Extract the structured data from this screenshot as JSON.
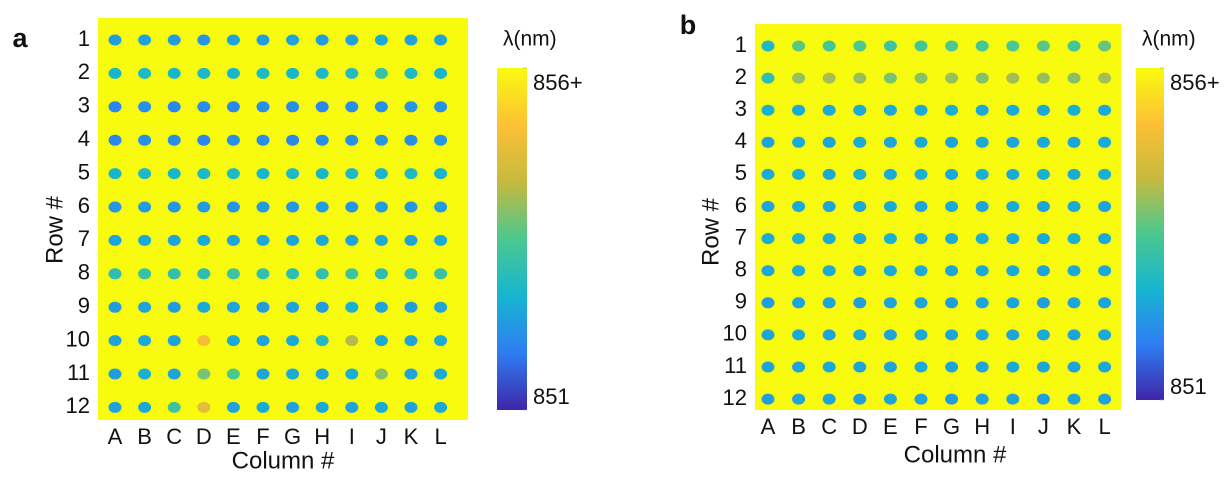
{
  "chart_data": [
    {
      "type": "heatmap",
      "panel": "a",
      "x_label": "Column #",
      "y_label": "Row #",
      "categories": [
        "A",
        "B",
        "C",
        "D",
        "E",
        "F",
        "G",
        "H",
        "I",
        "J",
        "K",
        "L"
      ],
      "rows": [
        1,
        2,
        3,
        4,
        5,
        6,
        7,
        8,
        9,
        10,
        11,
        12
      ],
      "background_value": 856,
      "values": [
        [
          852.3,
          852.4,
          852.3,
          852.2,
          852.4,
          852.3,
          852.4,
          852.3,
          852.4,
          852.5,
          852.4,
          852.4
        ],
        [
          852.7,
          852.8,
          852.7,
          852.8,
          852.7,
          852.8,
          852.7,
          852.8,
          852.9,
          853.2,
          852.8,
          852.7
        ],
        [
          852.0,
          852.1,
          852.0,
          852.1,
          852.0,
          852.1,
          852.1,
          852.0,
          852.1,
          852.1,
          852.2,
          852.1
        ],
        [
          852.0,
          852.1,
          852.1,
          852.0,
          852.1,
          852.1,
          852.0,
          852.1,
          852.1,
          852.2,
          852.1,
          852.2
        ],
        [
          852.7,
          852.8,
          852.7,
          852.8,
          852.8,
          852.7,
          852.8,
          852.7,
          852.8,
          852.7,
          852.8,
          852.7
        ],
        [
          852.2,
          852.3,
          852.2,
          852.3,
          852.2,
          852.3,
          852.2,
          852.3,
          852.2,
          852.3,
          852.2,
          852.3
        ],
        [
          852.4,
          852.5,
          852.4,
          852.5,
          852.4,
          852.5,
          852.4,
          852.5,
          852.4,
          852.5,
          852.4,
          852.5
        ],
        [
          853.0,
          853.2,
          853.1,
          853.0,
          853.3,
          853.1,
          853.0,
          853.1,
          853.3,
          853.0,
          853.1,
          853.2
        ],
        [
          852.3,
          852.4,
          852.3,
          852.5,
          852.4,
          852.3,
          852.4,
          852.3,
          852.6,
          852.4,
          852.3,
          852.4
        ],
        [
          852.4,
          852.5,
          852.4,
          855.0,
          852.5,
          852.4,
          852.5,
          852.9,
          854.2,
          852.5,
          852.4,
          852.5
        ],
        [
          852.3,
          852.6,
          852.4,
          853.8,
          853.5,
          852.4,
          852.5,
          852.4,
          852.6,
          853.9,
          852.4,
          852.5
        ],
        [
          852.4,
          852.5,
          853.3,
          854.8,
          852.4,
          852.5,
          852.4,
          852.5,
          852.4,
          852.5,
          852.4,
          852.5
        ]
      ],
      "colorbar_label": "λ(nm)",
      "clim": [
        851,
        856
      ],
      "colorbar_ticks": [
        {
          "value": 856,
          "label": "856+"
        },
        851
      ],
      "colormap": [
        "#3e26a8",
        "#2f7df3",
        "#16b5d0",
        "#4bc88f",
        "#c6ba3e",
        "#fdc035",
        "#f9fb0e"
      ]
    },
    {
      "type": "heatmap",
      "panel": "b",
      "x_label": "Column #",
      "y_label": "Row #",
      "categories": [
        "A",
        "B",
        "C",
        "D",
        "E",
        "F",
        "G",
        "H",
        "I",
        "J",
        "K",
        "L"
      ],
      "rows": [
        1,
        2,
        3,
        4,
        5,
        6,
        7,
        8,
        9,
        10,
        11,
        12
      ],
      "background_value": 856,
      "values": [
        [
          852.8,
          853.6,
          853.4,
          853.5,
          853.3,
          853.4,
          853.5,
          853.4,
          853.5,
          853.6,
          853.4,
          853.7
        ],
        [
          853.0,
          854.0,
          854.1,
          854.0,
          853.8,
          853.9,
          854.0,
          853.9,
          854.1,
          854.0,
          853.9,
          854.1
        ],
        [
          852.6,
          852.5,
          852.5,
          852.5,
          852.5,
          852.5,
          852.6,
          852.5,
          852.5,
          852.5,
          852.6,
          852.5
        ],
        [
          852.4,
          852.5,
          852.4,
          852.5,
          852.4,
          852.5,
          852.4,
          852.5,
          852.4,
          852.5,
          852.4,
          852.5
        ],
        [
          852.5,
          852.6,
          852.5,
          852.6,
          852.5,
          852.6,
          852.5,
          852.6,
          852.5,
          852.6,
          852.5,
          852.6
        ],
        [
          852.4,
          852.5,
          852.4,
          852.5,
          852.5,
          852.4,
          852.5,
          852.4,
          852.5,
          852.4,
          852.5,
          852.4
        ],
        [
          852.5,
          852.6,
          852.5,
          852.5,
          852.6,
          852.5,
          852.5,
          852.6,
          852.5,
          852.5,
          852.6,
          852.5
        ],
        [
          852.4,
          852.5,
          852.5,
          852.4,
          852.5,
          852.5,
          852.4,
          852.5,
          852.5,
          852.4,
          852.5,
          852.5
        ],
        [
          852.3,
          852.4,
          852.4,
          852.3,
          852.4,
          852.4,
          852.3,
          852.4,
          852.4,
          852.3,
          852.4,
          852.4
        ],
        [
          852.4,
          852.5,
          852.4,
          852.5,
          852.4,
          852.5,
          852.4,
          852.5,
          852.4,
          852.5,
          852.4,
          852.5
        ],
        [
          852.4,
          852.4,
          852.5,
          852.4,
          852.4,
          852.5,
          852.4,
          852.4,
          852.5,
          852.4,
          852.4,
          852.5
        ],
        [
          852.3,
          852.4,
          852.4,
          852.3,
          852.4,
          852.4,
          852.3,
          852.4,
          852.4,
          852.3,
          852.4,
          852.4
        ]
      ],
      "colorbar_label": "λ(nm)",
      "clim": [
        851,
        856
      ],
      "colorbar_ticks": [
        {
          "value": 856,
          "label": "856+"
        },
        851
      ],
      "colormap": [
        "#3e26a8",
        "#2f7df3",
        "#16b5d0",
        "#4bc88f",
        "#c6ba3e",
        "#fdc035",
        "#f9fb0e"
      ]
    }
  ]
}
